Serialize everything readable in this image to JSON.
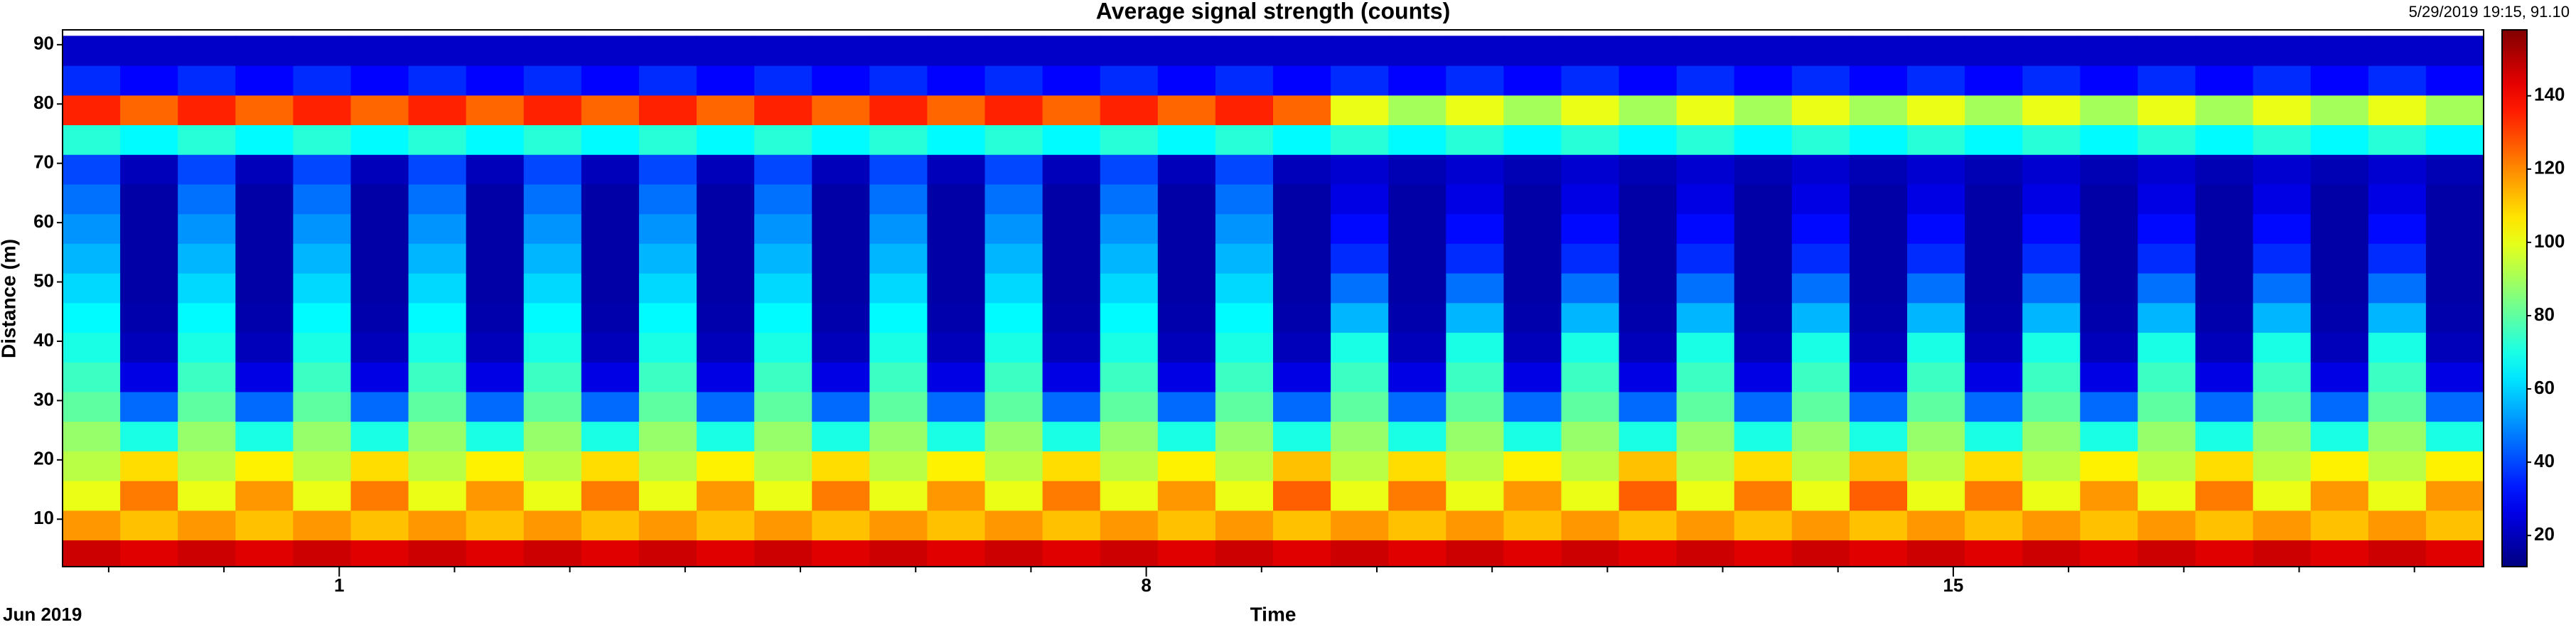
{
  "chart_data": {
    "type": "heatmap",
    "title": "Average signal strength (counts)",
    "annotation": "5/29/2019 19:15, 91.10",
    "x_label": "Time",
    "x_sublabel": "Jun 2019",
    "y_label": "Distance (m)",
    "xlim": [
      -1.4,
      19.6
    ],
    "xticks": [
      1,
      8,
      15
    ],
    "xminor": [
      -1,
      0,
      2,
      3,
      4,
      5,
      6,
      7,
      9,
      10,
      11,
      12,
      13,
      14,
      16,
      17,
      18,
      19
    ],
    "ylim": [
      2,
      92.5
    ],
    "yticks": [
      10,
      20,
      30,
      40,
      50,
      60,
      70,
      80,
      90
    ],
    "clim": [
      11.5,
      158
    ],
    "cticks": [
      20,
      40,
      60,
      80,
      100,
      120,
      140
    ],
    "colormap": "jet",
    "x": [
      -1.15,
      -0.65,
      -0.15,
      0.35,
      0.85,
      1.35,
      1.85,
      2.35,
      2.85,
      3.35,
      3.85,
      4.35,
      4.85,
      5.35,
      5.85,
      6.35,
      6.85,
      7.35,
      7.85,
      8.35,
      8.85,
      9.35,
      9.85,
      10.35,
      10.85,
      11.35,
      11.85,
      12.35,
      12.85,
      13.35,
      13.85,
      14.35,
      14.85,
      15.35,
      15.85,
      16.35,
      16.85,
      17.35,
      17.85,
      18.35,
      18.85,
      19.35
    ],
    "y": [
      4,
      9,
      14,
      19,
      24,
      29,
      34,
      39,
      44,
      49,
      54,
      59,
      64,
      69,
      74,
      79,
      84,
      89
    ],
    "z": [
      [
        147,
        144,
        147,
        144,
        147,
        144,
        147,
        144,
        147,
        144,
        147,
        144,
        147,
        144,
        147,
        144,
        147,
        144,
        147,
        144,
        147,
        144,
        147,
        144,
        147,
        144,
        147,
        144,
        147,
        144,
        147,
        144,
        147,
        144,
        147,
        144,
        147,
        144,
        147,
        144,
        147,
        144
      ],
      [
        118,
        112,
        118,
        112,
        118,
        112,
        118,
        112,
        118,
        112,
        118,
        112,
        118,
        112,
        118,
        112,
        118,
        112,
        118,
        112,
        118,
        112,
        118,
        112,
        118,
        112,
        118,
        112,
        118,
        112,
        118,
        112,
        118,
        112,
        118,
        112,
        118,
        112,
        118,
        112,
        118,
        112
      ],
      [
        100,
        122,
        100,
        118,
        100,
        122,
        100,
        118,
        100,
        122,
        100,
        118,
        100,
        122,
        100,
        118,
        100,
        122,
        100,
        118,
        100,
        126,
        100,
        122,
        100,
        118,
        100,
        126,
        100,
        122,
        100,
        126,
        100,
        122,
        100,
        118,
        100,
        122,
        100,
        118,
        100,
        118
      ],
      [
        93,
        108,
        93,
        105,
        93,
        108,
        93,
        105,
        93,
        108,
        93,
        105,
        93,
        108,
        93,
        105,
        93,
        108,
        93,
        105,
        93,
        112,
        93,
        108,
        93,
        105,
        93,
        112,
        93,
        108,
        93,
        112,
        93,
        108,
        93,
        105,
        93,
        108,
        93,
        105,
        93,
        105
      ],
      [
        88,
        70,
        88,
        70,
        88,
        70,
        88,
        70,
        88,
        70,
        88,
        70,
        88,
        70,
        88,
        70,
        88,
        70,
        88,
        70,
        88,
        70,
        88,
        70,
        88,
        70,
        88,
        70,
        88,
        70,
        88,
        70,
        88,
        70,
        88,
        70,
        88,
        70,
        88,
        70,
        88,
        70
      ],
      [
        80,
        45,
        80,
        45,
        80,
        45,
        80,
        45,
        80,
        45,
        80,
        45,
        80,
        45,
        80,
        45,
        80,
        45,
        80,
        45,
        80,
        45,
        80,
        45,
        80,
        45,
        80,
        45,
        80,
        45,
        80,
        45,
        80,
        45,
        80,
        45,
        80,
        45,
        80,
        45,
        80,
        45
      ],
      [
        75,
        26,
        75,
        26,
        75,
        26,
        75,
        26,
        75,
        26,
        75,
        26,
        75,
        26,
        75,
        26,
        75,
        26,
        75,
        26,
        75,
        26,
        75,
        26,
        75,
        26,
        75,
        26,
        75,
        26,
        75,
        26,
        75,
        26,
        75,
        26,
        75,
        26,
        75,
        26,
        75,
        26
      ],
      [
        70,
        20,
        70,
        20,
        70,
        20,
        70,
        20,
        70,
        20,
        70,
        20,
        70,
        20,
        70,
        20,
        70,
        20,
        70,
        20,
        70,
        20,
        70,
        20,
        70,
        20,
        70,
        20,
        70,
        20,
        70,
        20,
        70,
        20,
        70,
        20,
        70,
        20,
        70,
        20,
        70,
        20
      ],
      [
        66,
        18,
        66,
        18,
        66,
        18,
        66,
        18,
        66,
        18,
        66,
        18,
        66,
        18,
        66,
        18,
        66,
        18,
        66,
        18,
        66,
        18,
        56,
        18,
        56,
        18,
        56,
        18,
        56,
        18,
        56,
        18,
        56,
        18,
        56,
        18,
        56,
        18,
        56,
        18,
        56,
        18
      ],
      [
        61,
        17,
        61,
        17,
        61,
        17,
        61,
        17,
        61,
        17,
        61,
        17,
        61,
        17,
        61,
        17,
        61,
        17,
        61,
        17,
        61,
        17,
        46,
        17,
        46,
        17,
        46,
        17,
        46,
        17,
        46,
        17,
        46,
        17,
        46,
        17,
        46,
        17,
        46,
        17,
        46,
        17
      ],
      [
        56,
        17,
        56,
        17,
        56,
        17,
        56,
        17,
        56,
        17,
        56,
        17,
        56,
        17,
        56,
        17,
        56,
        17,
        56,
        17,
        56,
        17,
        36,
        17,
        36,
        17,
        36,
        17,
        36,
        17,
        36,
        17,
        36,
        17,
        36,
        17,
        36,
        17,
        36,
        17,
        36,
        17
      ],
      [
        51,
        17,
        51,
        17,
        51,
        17,
        51,
        17,
        51,
        17,
        51,
        17,
        51,
        17,
        51,
        17,
        51,
        17,
        51,
        17,
        51,
        17,
        31,
        17,
        31,
        17,
        31,
        17,
        31,
        17,
        31,
        17,
        31,
        17,
        31,
        17,
        31,
        17,
        31,
        17,
        31,
        17
      ],
      [
        46,
        17,
        46,
        17,
        46,
        17,
        46,
        17,
        46,
        17,
        46,
        17,
        46,
        17,
        46,
        17,
        46,
        17,
        46,
        17,
        46,
        17,
        26,
        17,
        26,
        17,
        26,
        17,
        26,
        17,
        26,
        17,
        26,
        17,
        26,
        17,
        26,
        17,
        26,
        17,
        26,
        17
      ],
      [
        40,
        20,
        40,
        20,
        40,
        20,
        40,
        20,
        40,
        20,
        40,
        20,
        40,
        20,
        40,
        20,
        40,
        20,
        40,
        20,
        40,
        20,
        23,
        19,
        23,
        19,
        23,
        19,
        23,
        19,
        23,
        19,
        23,
        19,
        23,
        19,
        23,
        19,
        23,
        19,
        23,
        19
      ],
      [
        72,
        66,
        72,
        66,
        72,
        66,
        72,
        66,
        72,
        66,
        72,
        66,
        72,
        66,
        72,
        66,
        72,
        66,
        72,
        66,
        72,
        66,
        72,
        66,
        72,
        66,
        72,
        66,
        72,
        66,
        72,
        66,
        72,
        66,
        72,
        66,
        72,
        66,
        72,
        66,
        72,
        66
      ],
      [
        135,
        125,
        135,
        125,
        135,
        125,
        135,
        125,
        135,
        125,
        135,
        125,
        135,
        125,
        135,
        125,
        135,
        125,
        135,
        125,
        135,
        125,
        100,
        90,
        100,
        90,
        100,
        90,
        100,
        90,
        100,
        90,
        100,
        90,
        100,
        90,
        100,
        90,
        100,
        90,
        100,
        90
      ],
      [
        36,
        30,
        36,
        30,
        36,
        30,
        36,
        30,
        36,
        30,
        36,
        30,
        36,
        30,
        36,
        30,
        36,
        30,
        36,
        30,
        36,
        30,
        36,
        30,
        36,
        30,
        36,
        30,
        36,
        30,
        36,
        30,
        36,
        30,
        36,
        30,
        36,
        30,
        36,
        30,
        36,
        30
      ],
      [
        22,
        22,
        22,
        22,
        22,
        22,
        22,
        22,
        22,
        22,
        22,
        22,
        22,
        22,
        22,
        22,
        22,
        22,
        22,
        22,
        22,
        22,
        22,
        22,
        22,
        22,
        22,
        22,
        22,
        22,
        22,
        22,
        22,
        22,
        22,
        22,
        22,
        22,
        22,
        22,
        22,
        22
      ]
    ]
  }
}
